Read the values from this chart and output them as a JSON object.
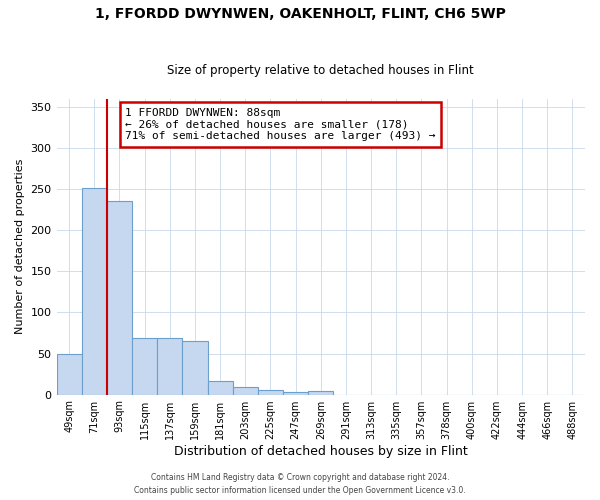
{
  "title": "1, FFORDD DWYNWEN, OAKENHOLT, FLINT, CH6 5WP",
  "subtitle": "Size of property relative to detached houses in Flint",
  "xlabel": "Distribution of detached houses by size in Flint",
  "ylabel": "Number of detached properties",
  "bar_labels": [
    "49sqm",
    "71sqm",
    "93sqm",
    "115sqm",
    "137sqm",
    "159sqm",
    "181sqm",
    "203sqm",
    "225sqm",
    "247sqm",
    "269sqm",
    "291sqm",
    "313sqm",
    "335sqm",
    "357sqm",
    "378sqm",
    "400sqm",
    "422sqm",
    "444sqm",
    "466sqm",
    "488sqm"
  ],
  "bar_values": [
    50,
    252,
    236,
    69,
    69,
    65,
    17,
    9,
    5,
    3,
    4,
    0,
    0,
    0,
    0,
    0,
    0,
    0,
    0,
    0,
    0
  ],
  "bar_color": "#c5d8ef",
  "bar_edge_color": "#6aa0cb",
  "vline_color": "#cc0000",
  "annotation_title": "1 FFORDD DWYNWEN: 88sqm",
  "annotation_line1": "← 26% of detached houses are smaller (178)",
  "annotation_line2": "71% of semi-detached houses are larger (493) →",
  "annotation_box_color": "#cc0000",
  "ylim": [
    0,
    360
  ],
  "yticks": [
    0,
    50,
    100,
    150,
    200,
    250,
    300,
    350
  ],
  "footer1": "Contains HM Land Registry data © Crown copyright and database right 2024.",
  "footer2": "Contains public sector information licensed under the Open Government Licence v3.0.",
  "background_color": "#ffffff",
  "grid_color": "#c8d8ea"
}
